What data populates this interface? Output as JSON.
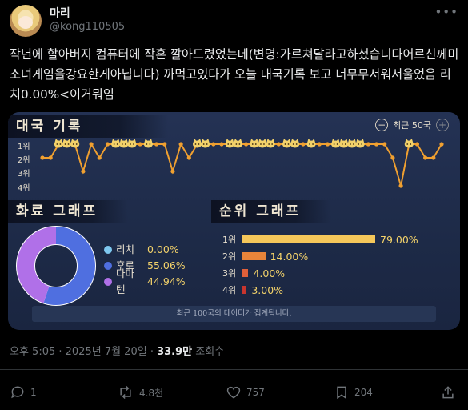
{
  "user": {
    "name": "마리",
    "handle": "@kong110505"
  },
  "tweet": {
    "text": "작년에 할아버지 컴퓨터에 작혼 깔아드렸었는데(변명:가르쳐달라고하셨습니다어르신께미소녀게임을강요한게아닙니다) 까먹고있다가 오늘 대국기록 보고 너무무서워서울었음   리치0.00%<이거뭐임"
  },
  "card": {
    "record_title": "대국 기록",
    "recent_label": "최근 50국",
    "rank_labels": [
      "1위",
      "2위",
      "3위",
      "4위"
    ],
    "pie_title": "화료 그래프",
    "rank_title": "순위 그래프",
    "footer_note": "최근 100국의 데이터가 집계됩니다."
  },
  "chart_data": [
    {
      "type": "line",
      "title": "대국 기록",
      "ylabel": "",
      "yticks": [
        "1위",
        "2위",
        "3위",
        "4위"
      ],
      "ylim": [
        1,
        4
      ],
      "y_inverted": true,
      "series_color": "#f0a030",
      "values": [
        2,
        2,
        1,
        1,
        1,
        3,
        1,
        2,
        1,
        1,
        1,
        1,
        1,
        1,
        1,
        1,
        3,
        1,
        2,
        1,
        1,
        1,
        1,
        1,
        1,
        1,
        1,
        1,
        1,
        1,
        1,
        1,
        1,
        1,
        1,
        1,
        1,
        1,
        1,
        1,
        1,
        1,
        1,
        2,
        4,
        1,
        1,
        2,
        2,
        1
      ]
    },
    {
      "type": "pie",
      "title": "화료 그래프",
      "labels": [
        "리치",
        "후로",
        "다마텐"
      ],
      "values_text": [
        "0.00%",
        "55.06%",
        "44.94%"
      ],
      "values": [
        0.0,
        55.06,
        44.94
      ],
      "colors": [
        "#7ec8f0",
        "#4f6fe0",
        "#b070e8"
      ]
    },
    {
      "type": "bar",
      "title": "순위 그래프",
      "categories": [
        "1위",
        "2위",
        "3위",
        "4위"
      ],
      "values": [
        79.0,
        14.0,
        4.0,
        3.0
      ],
      "values_text": [
        "79.00%",
        "14.00%",
        "4.00%",
        "3.00%"
      ],
      "colors": [
        "#f5c75a",
        "#e8843a",
        "#e0603a",
        "#c8352e"
      ]
    }
  ],
  "meta": {
    "time": "오후 5:05 · 2025년 7월 20일 · ",
    "views": "33.9만",
    "views_label": " 조회수"
  },
  "actions": {
    "replies": "1",
    "reposts": "4.8천",
    "likes": "757",
    "bookmarks": "204"
  }
}
